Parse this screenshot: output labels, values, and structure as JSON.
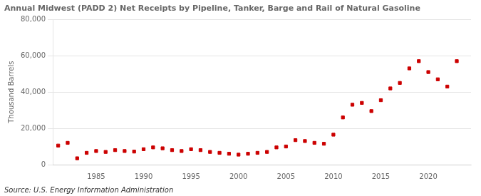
{
  "chart_data": {
    "type": "scatter",
    "title": "Annual Midwest (PADD 2) Net Receipts by Pipeline, Tanker, Barge and Rail of Natural Gasoline",
    "ylabel": "Thousand Barrels",
    "annotations": [
      "Source: U.S. Energy Information Administration"
    ],
    "x": [
      1981,
      1982,
      1983,
      1984,
      1985,
      1986,
      1987,
      1988,
      1989,
      1990,
      1991,
      1992,
      1993,
      1994,
      1995,
      1996,
      1997,
      1998,
      1999,
      2000,
      2001,
      2002,
      2003,
      2004,
      2005,
      2006,
      2007,
      2008,
      2009,
      2010,
      2011,
      2012,
      2013,
      2014,
      2015,
      2016,
      2017,
      2018,
      2019,
      2020,
      2021,
      2022,
      2023
    ],
    "values": [
      10500,
      12000,
      3500,
      6500,
      7500,
      7000,
      8000,
      7500,
      7200,
      8500,
      9500,
      9000,
      8000,
      7500,
      8500,
      8000,
      7000,
      6500,
      6000,
      5500,
      6000,
      6500,
      7000,
      9500,
      10000,
      13500,
      13000,
      12000,
      11500,
      16500,
      26000,
      33000,
      34000,
      29500,
      35500,
      42000,
      45000,
      53000,
      57000,
      51000,
      47000,
      43000,
      57000
    ],
    "color": "#cc0000",
    "marker": "square",
    "xlim": [
      1980.5,
      2024.5
    ],
    "xticks": [
      1985,
      1990,
      1995,
      2000,
      2005,
      2010,
      2015,
      2020
    ],
    "ylim": [
      0,
      80000
    ],
    "yticks": [
      0,
      {
        "value": 20000,
        "label": "20,000"
      },
      {
        "value": 40000,
        "label": "40,000"
      },
      {
        "value": 60000,
        "label": "60,000"
      },
      {
        "value": 80000,
        "label": "80,000"
      }
    ],
    "grid": "y"
  }
}
